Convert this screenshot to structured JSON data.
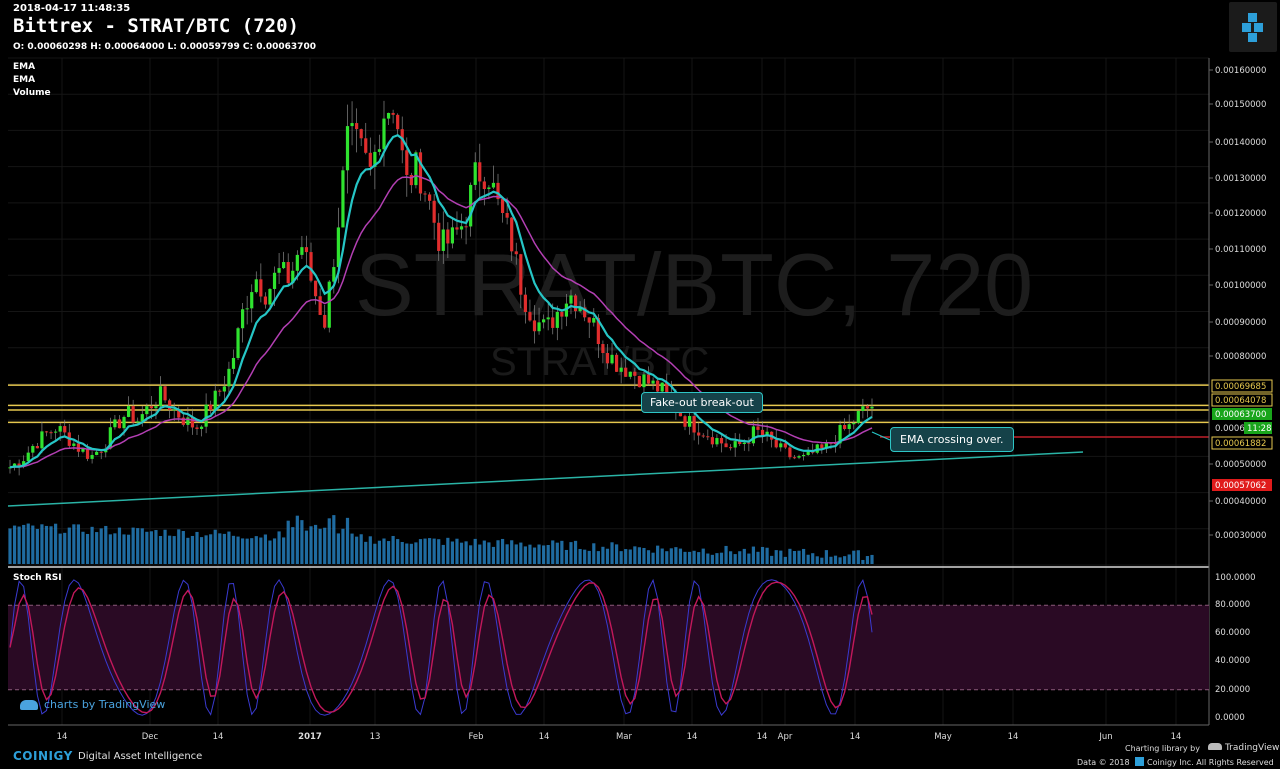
{
  "header": {
    "timestamp": "2018-04-17 11:48:35",
    "title": "Bittrex - STRAT/BTC (720)",
    "ohlc": "O: 0.00060298 H: 0.00064000 L: 0.00059799 C: 0.00063700"
  },
  "indicators": [
    "EMA",
    "EMA",
    "Volume"
  ],
  "watermark": {
    "main": "STRAT/BTC, 720",
    "sub": "STRAT/BTC"
  },
  "annotations": {
    "fakeout": "Fake-out break-out",
    "ema_cross": "EMA crossing over."
  },
  "osc_label": "Stoch RSI",
  "tv_brand": "charts by TradingView",
  "footer": {
    "brand": "COINIGY",
    "tagline": "Digital Asset Intelligence",
    "charting": "Charting library by",
    "tv": "TradingView",
    "copyright": "Data © 2018",
    "coinigy_inc": "Coinigy Inc. All Rights Reserved"
  },
  "colors": {
    "up": "#2fe32f",
    "down": "#e02d2d",
    "ema_fast": "#26c6c6",
    "ema_slow": "#b33fb3",
    "hline": "#e6c84f",
    "trend": "#2ab3a6",
    "volume": "#2a8fd6",
    "stoch": "#c2185b",
    "stoch_band": "#2a0a24",
    "label_last": "#19a51b",
    "label_low": "#e01b1b"
  },
  "chart_data": {
    "type": "candlestick",
    "price_axis": {
      "min": 0.0002,
      "max": 0.0016,
      "ticks": [
        "0.00160000",
        "0.00150000",
        "0.00140000",
        "0.00130000",
        "0.00120000",
        "0.00110000",
        "0.00100000",
        "0.00090000",
        "0.00080000",
        "0.00050000",
        "0.00040000",
        "0.00030000"
      ],
      "labels": [
        {
          "value": "0.00069685",
          "price": 0.00069685,
          "kind": "yellow"
        },
        {
          "value": "0.00064078",
          "price": 0.00064078,
          "kind": "yellow"
        },
        {
          "value": "0.00063700",
          "price": 0.000637,
          "kind": "green"
        },
        {
          "value": "11:28",
          "price": 0.00059,
          "kind": "green"
        },
        {
          "value": "0.00061882",
          "price": 0.00055,
          "kind": "yellow"
        },
        {
          "value": "0.00057062",
          "price": 0.00042,
          "kind": "red"
        },
        {
          "value": "0.0006",
          "price": 0.0006,
          "kind": "plain"
        }
      ]
    },
    "horizontal_lines": [
      {
        "price": 0.00069685,
        "color": "yellow"
      },
      {
        "price": 0.00064078,
        "color": "yellow"
      },
      {
        "price": 0.000628,
        "color": "yellow"
      },
      {
        "price": 0.000594,
        "color": "yellow"
      },
      {
        "price": 0.00057062,
        "color": "red"
      }
    ],
    "x_axis_labels": [
      "14",
      "Dec",
      "14",
      "2017",
      "13",
      "Feb",
      "14",
      "Mar",
      "14",
      "14",
      "Apr",
      "14",
      "May",
      "14",
      "Jun",
      "14"
    ],
    "candles_seed": [
      0.00047,
      0.00049,
      0.00053,
      0.00056,
      0.00058,
      0.00055,
      0.00052,
      0.0005,
      0.00053,
      0.00058,
      0.00062,
      0.0006,
      0.00064,
      0.00067,
      0.00063,
      0.0006,
      0.00058,
      0.00063,
      0.00068,
      0.00075,
      0.0009,
      0.001,
      0.00095,
      0.00101,
      0.00099,
      0.00109,
      0.00097,
      0.00087,
      0.0011,
      0.00138,
      0.00135,
      0.00128,
      0.00145,
      0.00148,
      0.00125,
      0.0013,
      0.0012,
      0.00108,
      0.0011,
      0.00115,
      0.00128,
      0.00129,
      0.00118,
      0.0011,
      0.00095,
      0.00088,
      0.00085,
      0.0009,
      0.00095,
      0.00092,
      0.00087,
      0.0008,
      0.00076,
      0.00074,
      0.00072,
      0.0007,
      0.00068,
      0.00064,
      0.0006,
      0.00058,
      0.00056,
      0.00054,
      0.00052,
      0.00054,
      0.00057,
      0.00055,
      0.00052,
      0.0005,
      0.00049,
      0.00051,
      0.00052,
      0.00056,
      0.00058,
      0.00062,
      0.00064
    ],
    "stoch_axis": {
      "min": 0,
      "max": 100,
      "ticks": [
        "100.0000",
        "80.0000",
        "60.0000",
        "40.0000",
        "20.0000",
        "0.0000"
      ]
    }
  }
}
